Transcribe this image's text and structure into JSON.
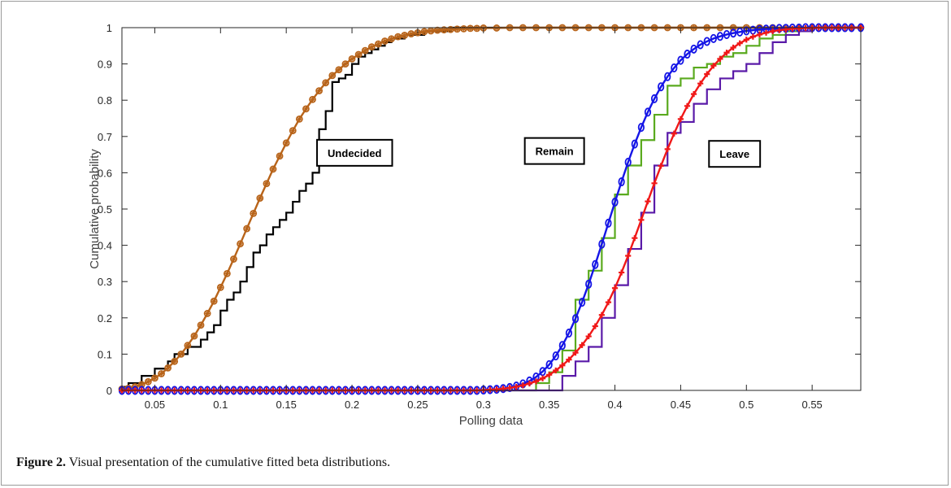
{
  "caption": {
    "label": "Figure 2.",
    "text": " Visual presentation of the cumulative fitted beta distributions."
  },
  "chart_data": {
    "type": "line",
    "title": "",
    "xlabel": "Polling data",
    "ylabel": "Cumulative probability",
    "xlim": [
      0.025,
      0.587
    ],
    "ylim": [
      0,
      1
    ],
    "xticks": [
      0.05,
      0.1,
      0.15,
      0.2,
      0.25,
      0.3,
      0.35,
      0.4,
      0.45,
      0.5,
      0.55
    ],
    "xtick_labels": [
      "0.05",
      "0.1",
      "0.15",
      "0.2",
      "0.25",
      "0.3",
      "0.35",
      "0.4",
      "0.45",
      "0.5",
      "0.55"
    ],
    "yticks": [
      0,
      0.1,
      0.2,
      0.3,
      0.4,
      0.5,
      0.6,
      0.7,
      0.8,
      0.9,
      1
    ],
    "ytick_labels": [
      "0",
      "0.1",
      "0.2",
      "0.3",
      "0.4",
      "0.5",
      "0.6",
      "0.7",
      "0.8",
      "0.9",
      "1"
    ],
    "grid": false,
    "annotations": [
      {
        "text": "Undecided",
        "x": 0.202,
        "y": 0.655
      },
      {
        "text": "Remain",
        "x": 0.354,
        "y": 0.66
      },
      {
        "text": "Leave",
        "x": 0.491,
        "y": 0.652
      }
    ],
    "series": [
      {
        "kind": "empirical-step",
        "color": "#000000",
        "x": [
          0.025,
          0.03,
          0.035,
          0.04,
          0.045,
          0.05,
          0.055,
          0.06,
          0.065,
          0.07,
          0.075,
          0.08,
          0.085,
          0.09,
          0.095,
          0.1,
          0.105,
          0.11,
          0.115,
          0.12,
          0.125,
          0.13,
          0.135,
          0.14,
          0.145,
          0.15,
          0.155,
          0.16,
          0.165,
          0.17,
          0.175,
          0.18,
          0.185,
          0.19,
          0.195,
          0.2,
          0.205,
          0.21,
          0.215,
          0.22,
          0.225,
          0.23,
          0.235,
          0.24,
          0.245,
          0.25,
          0.255,
          0.26,
          0.265,
          0.27,
          0.275,
          0.28,
          0.285,
          0.29,
          0.3,
          0.35,
          0.587
        ],
        "y": [
          0.01,
          0.02,
          0.02,
          0.04,
          0.04,
          0.06,
          0.06,
          0.08,
          0.1,
          0.1,
          0.12,
          0.12,
          0.14,
          0.16,
          0.18,
          0.22,
          0.25,
          0.27,
          0.3,
          0.34,
          0.38,
          0.4,
          0.43,
          0.45,
          0.47,
          0.49,
          0.52,
          0.55,
          0.57,
          0.6,
          0.72,
          0.77,
          0.85,
          0.86,
          0.87,
          0.9,
          0.92,
          0.93,
          0.94,
          0.95,
          0.96,
          0.97,
          0.97,
          0.98,
          0.98,
          0.98,
          0.99,
          0.99,
          0.99,
          0.99,
          1.0,
          1.0,
          1.0,
          1.0,
          1.0,
          1.0,
          1.0
        ]
      },
      {
        "kind": "fitted-cdf",
        "color": "#b8641a",
        "marker": "circle-star",
        "x": [
          0.025,
          0.03,
          0.035,
          0.04,
          0.045,
          0.05,
          0.055,
          0.06,
          0.065,
          0.07,
          0.075,
          0.08,
          0.085,
          0.09,
          0.095,
          0.1,
          0.105,
          0.11,
          0.115,
          0.12,
          0.125,
          0.13,
          0.135,
          0.14,
          0.145,
          0.15,
          0.155,
          0.16,
          0.165,
          0.17,
          0.175,
          0.18,
          0.185,
          0.19,
          0.195,
          0.2,
          0.205,
          0.21,
          0.215,
          0.22,
          0.225,
          0.23,
          0.235,
          0.24,
          0.245,
          0.25,
          0.255,
          0.26,
          0.265,
          0.27,
          0.275,
          0.28,
          0.285,
          0.29,
          0.295,
          0.3,
          0.31,
          0.32,
          0.33,
          0.34,
          0.35,
          0.36,
          0.37,
          0.38,
          0.39,
          0.4,
          0.41,
          0.42,
          0.43,
          0.44,
          0.45,
          0.46,
          0.47,
          0.48,
          0.49,
          0.5,
          0.51,
          0.52,
          0.53,
          0.54,
          0.55,
          0.56,
          0.57,
          0.58,
          0.587
        ],
        "y": [
          0.004,
          0.006,
          0.01,
          0.016,
          0.024,
          0.034,
          0.046,
          0.062,
          0.08,
          0.1,
          0.124,
          0.15,
          0.18,
          0.212,
          0.246,
          0.284,
          0.322,
          0.362,
          0.404,
          0.446,
          0.488,
          0.53,
          0.57,
          0.61,
          0.646,
          0.682,
          0.716,
          0.748,
          0.776,
          0.802,
          0.826,
          0.848,
          0.868,
          0.884,
          0.9,
          0.914,
          0.926,
          0.937,
          0.947,
          0.955,
          0.963,
          0.969,
          0.975,
          0.979,
          0.983,
          0.986,
          0.989,
          0.991,
          0.993,
          0.994,
          0.995,
          0.996,
          0.997,
          0.998,
          0.998,
          0.999,
          0.999,
          1.0,
          1.0,
          1.0,
          1.0,
          1.0,
          1.0,
          1.0,
          1.0,
          1.0,
          1.0,
          1.0,
          1.0,
          1.0,
          1.0,
          1.0,
          1.0,
          1.0,
          1.0,
          1.0,
          1.0,
          1.0,
          1.0,
          1.0,
          1.0,
          1.0,
          1.0,
          1.0,
          1.0
        ]
      },
      {
        "kind": "empirical-step",
        "color": "#5aaa1e",
        "x": [
          0.3,
          0.34,
          0.35,
          0.36,
          0.37,
          0.38,
          0.39,
          0.4,
          0.41,
          0.42,
          0.43,
          0.44,
          0.45,
          0.46,
          0.47,
          0.48,
          0.49,
          0.5,
          0.51,
          0.52,
          0.53,
          0.54,
          0.55,
          0.56,
          0.587
        ],
        "y": [
          0.0,
          0.02,
          0.05,
          0.11,
          0.25,
          0.33,
          0.42,
          0.54,
          0.62,
          0.69,
          0.76,
          0.84,
          0.86,
          0.89,
          0.9,
          0.92,
          0.93,
          0.95,
          0.97,
          0.98,
          0.99,
          1.0,
          1.0,
          1.0,
          1.0
        ]
      },
      {
        "kind": "fitted-cdf",
        "color": "#1515e6",
        "marker": "diamond",
        "x": [
          0.025,
          0.03,
          0.035,
          0.04,
          0.045,
          0.05,
          0.055,
          0.06,
          0.065,
          0.07,
          0.075,
          0.08,
          0.085,
          0.09,
          0.095,
          0.1,
          0.105,
          0.11,
          0.115,
          0.12,
          0.125,
          0.13,
          0.135,
          0.14,
          0.145,
          0.15,
          0.155,
          0.16,
          0.165,
          0.17,
          0.175,
          0.18,
          0.185,
          0.19,
          0.195,
          0.2,
          0.205,
          0.21,
          0.215,
          0.22,
          0.225,
          0.23,
          0.235,
          0.24,
          0.245,
          0.25,
          0.255,
          0.26,
          0.265,
          0.27,
          0.275,
          0.28,
          0.285,
          0.29,
          0.295,
          0.3,
          0.305,
          0.31,
          0.315,
          0.32,
          0.325,
          0.33,
          0.335,
          0.34,
          0.345,
          0.35,
          0.355,
          0.36,
          0.365,
          0.37,
          0.375,
          0.38,
          0.385,
          0.39,
          0.395,
          0.4,
          0.405,
          0.41,
          0.415,
          0.42,
          0.425,
          0.43,
          0.435,
          0.44,
          0.445,
          0.45,
          0.455,
          0.46,
          0.465,
          0.47,
          0.475,
          0.48,
          0.485,
          0.49,
          0.495,
          0.5,
          0.505,
          0.51,
          0.515,
          0.52,
          0.525,
          0.53,
          0.535,
          0.54,
          0.545,
          0.55,
          0.555,
          0.56,
          0.565,
          0.57,
          0.575,
          0.58,
          0.587
        ],
        "y": [
          0,
          0,
          0,
          0,
          0,
          0,
          0,
          0,
          0,
          0,
          0,
          0,
          0,
          0,
          0,
          0,
          0,
          0,
          0,
          0,
          0,
          0,
          0,
          0,
          0,
          0,
          0,
          0,
          0,
          0,
          0,
          0,
          0,
          0,
          0,
          0,
          0,
          0,
          0,
          0,
          0,
          0,
          0,
          0,
          0,
          0,
          0,
          0,
          0,
          0,
          0,
          0,
          0,
          0,
          0,
          0.001,
          0.002,
          0.003,
          0.005,
          0.008,
          0.012,
          0.018,
          0.026,
          0.037,
          0.052,
          0.071,
          0.095,
          0.124,
          0.158,
          0.198,
          0.243,
          0.293,
          0.347,
          0.403,
          0.461,
          0.519,
          0.575,
          0.629,
          0.679,
          0.725,
          0.767,
          0.804,
          0.837,
          0.865,
          0.889,
          0.91,
          0.927,
          0.941,
          0.953,
          0.962,
          0.97,
          0.976,
          0.981,
          0.985,
          0.988,
          0.991,
          0.993,
          0.995,
          0.996,
          0.997,
          0.998,
          0.998,
          0.999,
          0.999,
          1.0,
          1.0,
          1.0,
          1.0,
          1.0,
          1.0,
          1.0,
          1.0,
          1.0
        ]
      },
      {
        "kind": "empirical-step",
        "color": "#5a1aa8",
        "x": [
          0.3,
          0.36,
          0.37,
          0.38,
          0.39,
          0.4,
          0.41,
          0.42,
          0.43,
          0.44,
          0.45,
          0.46,
          0.47,
          0.48,
          0.49,
          0.5,
          0.51,
          0.52,
          0.53,
          0.54,
          0.55,
          0.56,
          0.587
        ],
        "y": [
          0.0,
          0.04,
          0.08,
          0.12,
          0.2,
          0.29,
          0.39,
          0.49,
          0.62,
          0.71,
          0.74,
          0.79,
          0.83,
          0.86,
          0.88,
          0.9,
          0.93,
          0.96,
          0.98,
          0.99,
          1.0,
          1.0,
          1.0
        ]
      },
      {
        "kind": "fitted-cdf",
        "color": "#f01818",
        "marker": "plus",
        "x": [
          0.025,
          0.03,
          0.035,
          0.04,
          0.045,
          0.05,
          0.055,
          0.06,
          0.065,
          0.07,
          0.075,
          0.08,
          0.085,
          0.09,
          0.095,
          0.1,
          0.105,
          0.11,
          0.115,
          0.12,
          0.125,
          0.13,
          0.135,
          0.14,
          0.145,
          0.15,
          0.155,
          0.16,
          0.165,
          0.17,
          0.175,
          0.18,
          0.185,
          0.19,
          0.195,
          0.2,
          0.205,
          0.21,
          0.215,
          0.22,
          0.225,
          0.23,
          0.235,
          0.24,
          0.245,
          0.25,
          0.255,
          0.26,
          0.265,
          0.27,
          0.275,
          0.28,
          0.285,
          0.29,
          0.295,
          0.3,
          0.305,
          0.31,
          0.315,
          0.32,
          0.325,
          0.33,
          0.335,
          0.34,
          0.345,
          0.35,
          0.355,
          0.36,
          0.365,
          0.37,
          0.375,
          0.38,
          0.385,
          0.39,
          0.395,
          0.4,
          0.405,
          0.41,
          0.415,
          0.42,
          0.425,
          0.43,
          0.435,
          0.44,
          0.445,
          0.45,
          0.455,
          0.46,
          0.465,
          0.47,
          0.475,
          0.48,
          0.485,
          0.49,
          0.495,
          0.5,
          0.505,
          0.51,
          0.515,
          0.52,
          0.525,
          0.53,
          0.535,
          0.54,
          0.545,
          0.55,
          0.555,
          0.56,
          0.565,
          0.57,
          0.575,
          0.58,
          0.587
        ],
        "y": [
          0,
          0,
          0,
          0,
          0,
          0,
          0,
          0,
          0,
          0,
          0,
          0,
          0,
          0,
          0,
          0,
          0,
          0,
          0,
          0,
          0,
          0,
          0,
          0,
          0,
          0,
          0,
          0,
          0,
          0,
          0,
          0,
          0,
          0,
          0,
          0,
          0,
          0,
          0,
          0,
          0,
          0,
          0,
          0,
          0,
          0,
          0,
          0,
          0,
          0,
          0,
          0,
          0,
          0,
          0,
          0.001,
          0.002,
          0.003,
          0.005,
          0.007,
          0.01,
          0.014,
          0.019,
          0.025,
          0.033,
          0.043,
          0.055,
          0.069,
          0.085,
          0.104,
          0.125,
          0.149,
          0.177,
          0.208,
          0.243,
          0.282,
          0.325,
          0.371,
          0.42,
          0.47,
          0.521,
          0.571,
          0.619,
          0.665,
          0.708,
          0.748,
          0.784,
          0.817,
          0.846,
          0.872,
          0.895,
          0.914,
          0.931,
          0.945,
          0.957,
          0.967,
          0.975,
          0.981,
          0.986,
          0.99,
          0.993,
          0.995,
          0.997,
          0.998,
          0.999,
          0.999,
          1.0,
          1.0,
          1.0,
          1.0,
          1.0,
          1.0,
          1.0
        ]
      }
    ]
  }
}
